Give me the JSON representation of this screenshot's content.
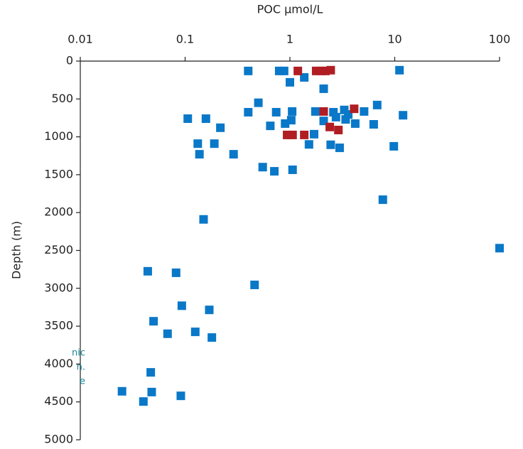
{
  "chart_data": {
    "type": "scatter",
    "xlabel": "POC µmol/L",
    "ylabel": "Depth (m)",
    "xscale": "log",
    "xaxis_position": "top",
    "y_inverted": true,
    "xlim": [
      0.01,
      100
    ],
    "xticks": [
      0.01,
      0.1,
      1,
      10,
      100
    ],
    "ylim": [
      0,
      5000
    ],
    "yticks": [
      0,
      500,
      1000,
      1500,
      2000,
      2500,
      3000,
      3500,
      4000,
      4500,
      5000
    ],
    "annotations": [
      "nic",
      "n.",
      "e"
    ],
    "series": [
      {
        "color": "#0a78c8",
        "x": [
          0.4,
          0.79,
          0.88,
          1.0,
          1.37,
          2.1,
          11.1,
          0.5,
          0.4,
          0.74,
          1.05,
          0.65,
          1.03,
          0.9,
          1.75,
          2.6,
          3.3,
          3.6,
          3.4,
          2.1,
          2.75,
          1.7,
          4.2,
          5.1,
          6.8,
          6.3,
          12,
          0.106,
          0.158,
          0.217,
          0.132,
          0.19,
          0.137,
          0.29,
          1.52,
          2.45,
          2.98,
          9.8,
          0.55,
          0.71,
          1.06,
          7.7,
          0.15,
          100,
          0.044,
          0.082,
          0.46,
          0.093,
          0.17,
          0.05,
          0.068,
          0.125,
          0.18,
          0.047,
          0.025,
          0.048,
          0.04,
          0.091
        ],
        "values": [
          130,
          130,
          130,
          280,
          215,
          365,
          120,
          550,
          675,
          675,
          665,
          855,
          780,
          825,
          665,
          675,
          645,
          705,
          770,
          790,
          740,
          965,
          825,
          665,
          580,
          835,
          715,
          760,
          760,
          880,
          1090,
          1090,
          1230,
          1230,
          1100,
          1105,
          1145,
          1125,
          1400,
          1455,
          1435,
          1830,
          2090,
          2470,
          2775,
          2795,
          2955,
          3230,
          3285,
          3435,
          3600,
          3575,
          3650,
          4110,
          4360,
          4370,
          4495,
          4420
        ]
      },
      {
        "color": "#b01e23",
        "x": [
          1.19,
          1.78,
          1.99,
          2.18,
          2.45,
          2.1,
          4.1,
          2.4,
          2.9,
          0.94,
          1.06,
          1.37
        ],
        "values": [
          130,
          130,
          130,
          130,
          120,
          665,
          630,
          870,
          910,
          975,
          975,
          975
        ]
      }
    ]
  }
}
